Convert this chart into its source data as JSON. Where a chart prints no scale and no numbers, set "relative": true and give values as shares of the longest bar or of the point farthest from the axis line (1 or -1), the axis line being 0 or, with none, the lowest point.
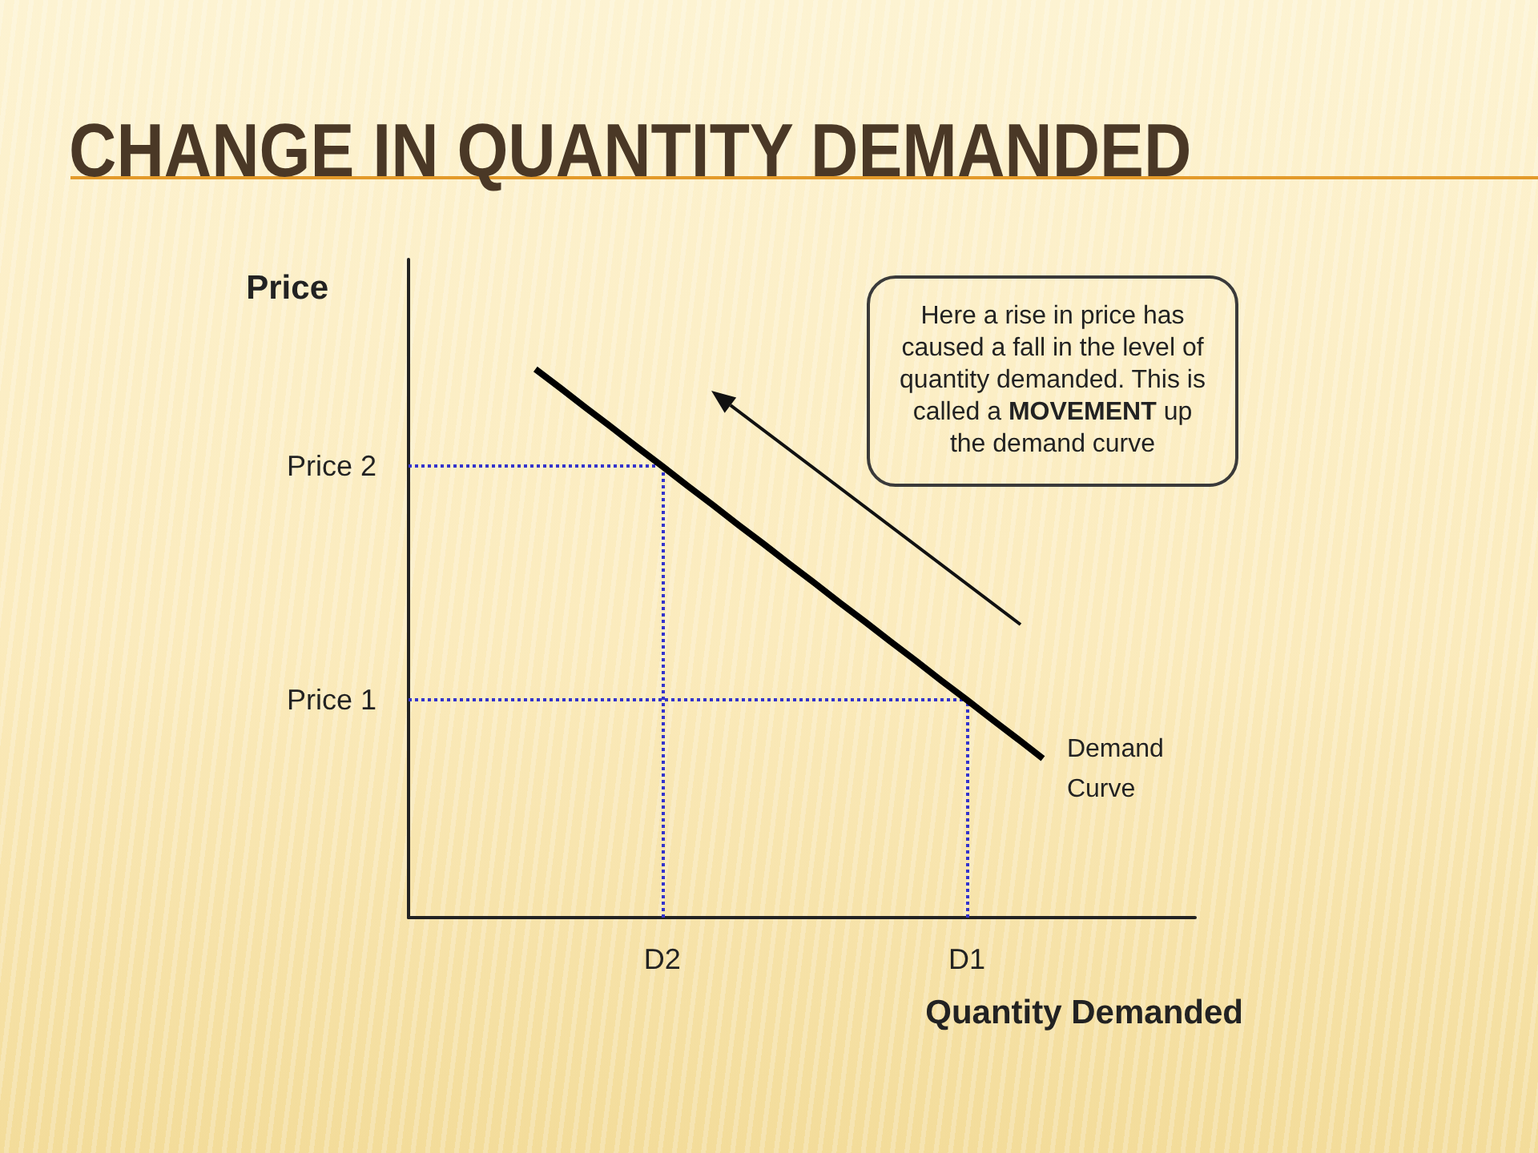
{
  "chart_data": {
    "type": "line",
    "title": "CHANGE IN QUANTITY DEMANDED",
    "xlabel": "Quantity Demanded",
    "ylabel": "Price",
    "relative": true,
    "categories": [
      null,
      null,
      null,
      null,
      null,
      null,
      null,
      null,
      null,
      null,
      "D2",
      null,
      null,
      null,
      null,
      null,
      null,
      null,
      null,
      null,
      null,
      null,
      "D1",
      null,
      null,
      null,
      null,
      null,
      null,
      null,
      null,
      null
    ],
    "series": [
      {
        "name": "Demand Curve",
        "color": "#000000",
        "values": [
          null,
          null,
          null,
          null,
          null,
          1,
          0.965,
          0.929,
          0.894,
          0.858,
          0.823,
          0.787,
          0.752,
          0.716,
          0.681,
          0.645,
          0.61,
          0.574,
          0.539,
          0.503,
          0.468,
          0.432,
          0.397,
          0.361,
          0.326,
          0.29,
          null,
          null,
          null,
          null,
          null,
          null
        ]
      }
    ],
    "ref_lines": [
      {
        "axis": "y",
        "value": 0.823,
        "label": "Price 2",
        "color": "#3333cc",
        "line_style": "dotted"
      },
      {
        "axis": "y",
        "value": 0.397,
        "label": "Price 1",
        "color": "#3333cc",
        "line_style": "dotted"
      },
      {
        "axis": "x",
        "value": "D2",
        "color": "#3333cc",
        "line_style": "dotted"
      },
      {
        "axis": "x",
        "value": "D1",
        "color": "#3333cc",
        "line_style": "dotted"
      }
    ],
    "annotations": [
      "Here a rise in price has caused a fall in the level of quantity demanded. This is called a MOVEMENT up the demand curve"
    ],
    "grid": false,
    "marker": "none",
    "line_style": "solid"
  }
}
